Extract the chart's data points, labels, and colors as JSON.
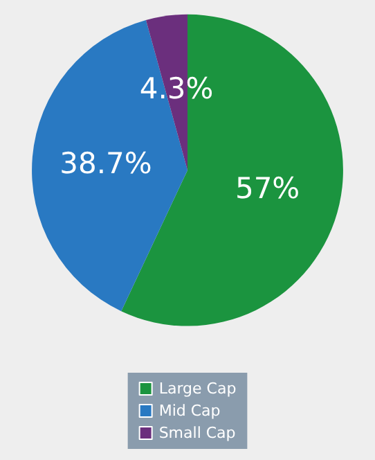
{
  "chart_data": {
    "type": "pie",
    "categories": [
      "Large Cap",
      "Mid Cap",
      "Small Cap"
    ],
    "values": [
      57,
      38.7,
      4.3
    ],
    "colors": [
      "#1b943f",
      "#2979c2",
      "#6b2f7d"
    ],
    "value_labels": [
      "57%",
      "38.7%",
      "4.3%"
    ],
    "legend": "bottom"
  }
}
